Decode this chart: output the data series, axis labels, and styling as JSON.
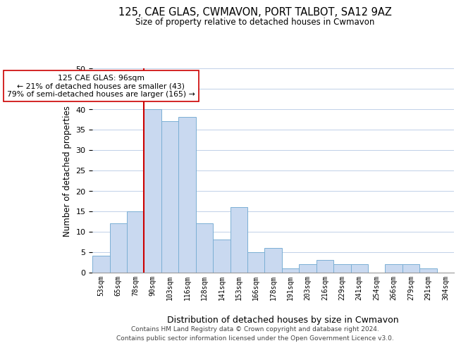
{
  "title": "125, CAE GLAS, CWMAVON, PORT TALBOT, SA12 9AZ",
  "subtitle": "Size of property relative to detached houses in Cwmavon",
  "xlabel": "Distribution of detached houses by size in Cwmavon",
  "ylabel": "Number of detached properties",
  "bin_labels": [
    "53sqm",
    "65sqm",
    "78sqm",
    "90sqm",
    "103sqm",
    "116sqm",
    "128sqm",
    "141sqm",
    "153sqm",
    "166sqm",
    "178sqm",
    "191sqm",
    "203sqm",
    "216sqm",
    "229sqm",
    "241sqm",
    "254sqm",
    "266sqm",
    "279sqm",
    "291sqm",
    "304sqm"
  ],
  "bar_heights": [
    4,
    12,
    15,
    40,
    37,
    38,
    12,
    8,
    16,
    5,
    6,
    1,
    2,
    3,
    2,
    2,
    0,
    2,
    2,
    1,
    0
  ],
  "bar_color": "#c9d9f0",
  "bar_edge_color": "#7bafd4",
  "reference_line_x": 3.0,
  "reference_line_color": "#cc0000",
  "annotation_line1": "125 CAE GLAS: 96sqm",
  "annotation_line2": "← 21% of detached houses are smaller (43)",
  "annotation_line3": "79% of semi-detached houses are larger (165) →",
  "annotation_box_edgecolor": "#cc0000",
  "ylim": [
    0,
    50
  ],
  "yticks": [
    0,
    5,
    10,
    15,
    20,
    25,
    30,
    35,
    40,
    45,
    50
  ],
  "footer_line1": "Contains HM Land Registry data © Crown copyright and database right 2024.",
  "footer_line2": "Contains public sector information licensed under the Open Government Licence v3.0.",
  "background_color": "#ffffff",
  "grid_color": "#c0d0e8"
}
